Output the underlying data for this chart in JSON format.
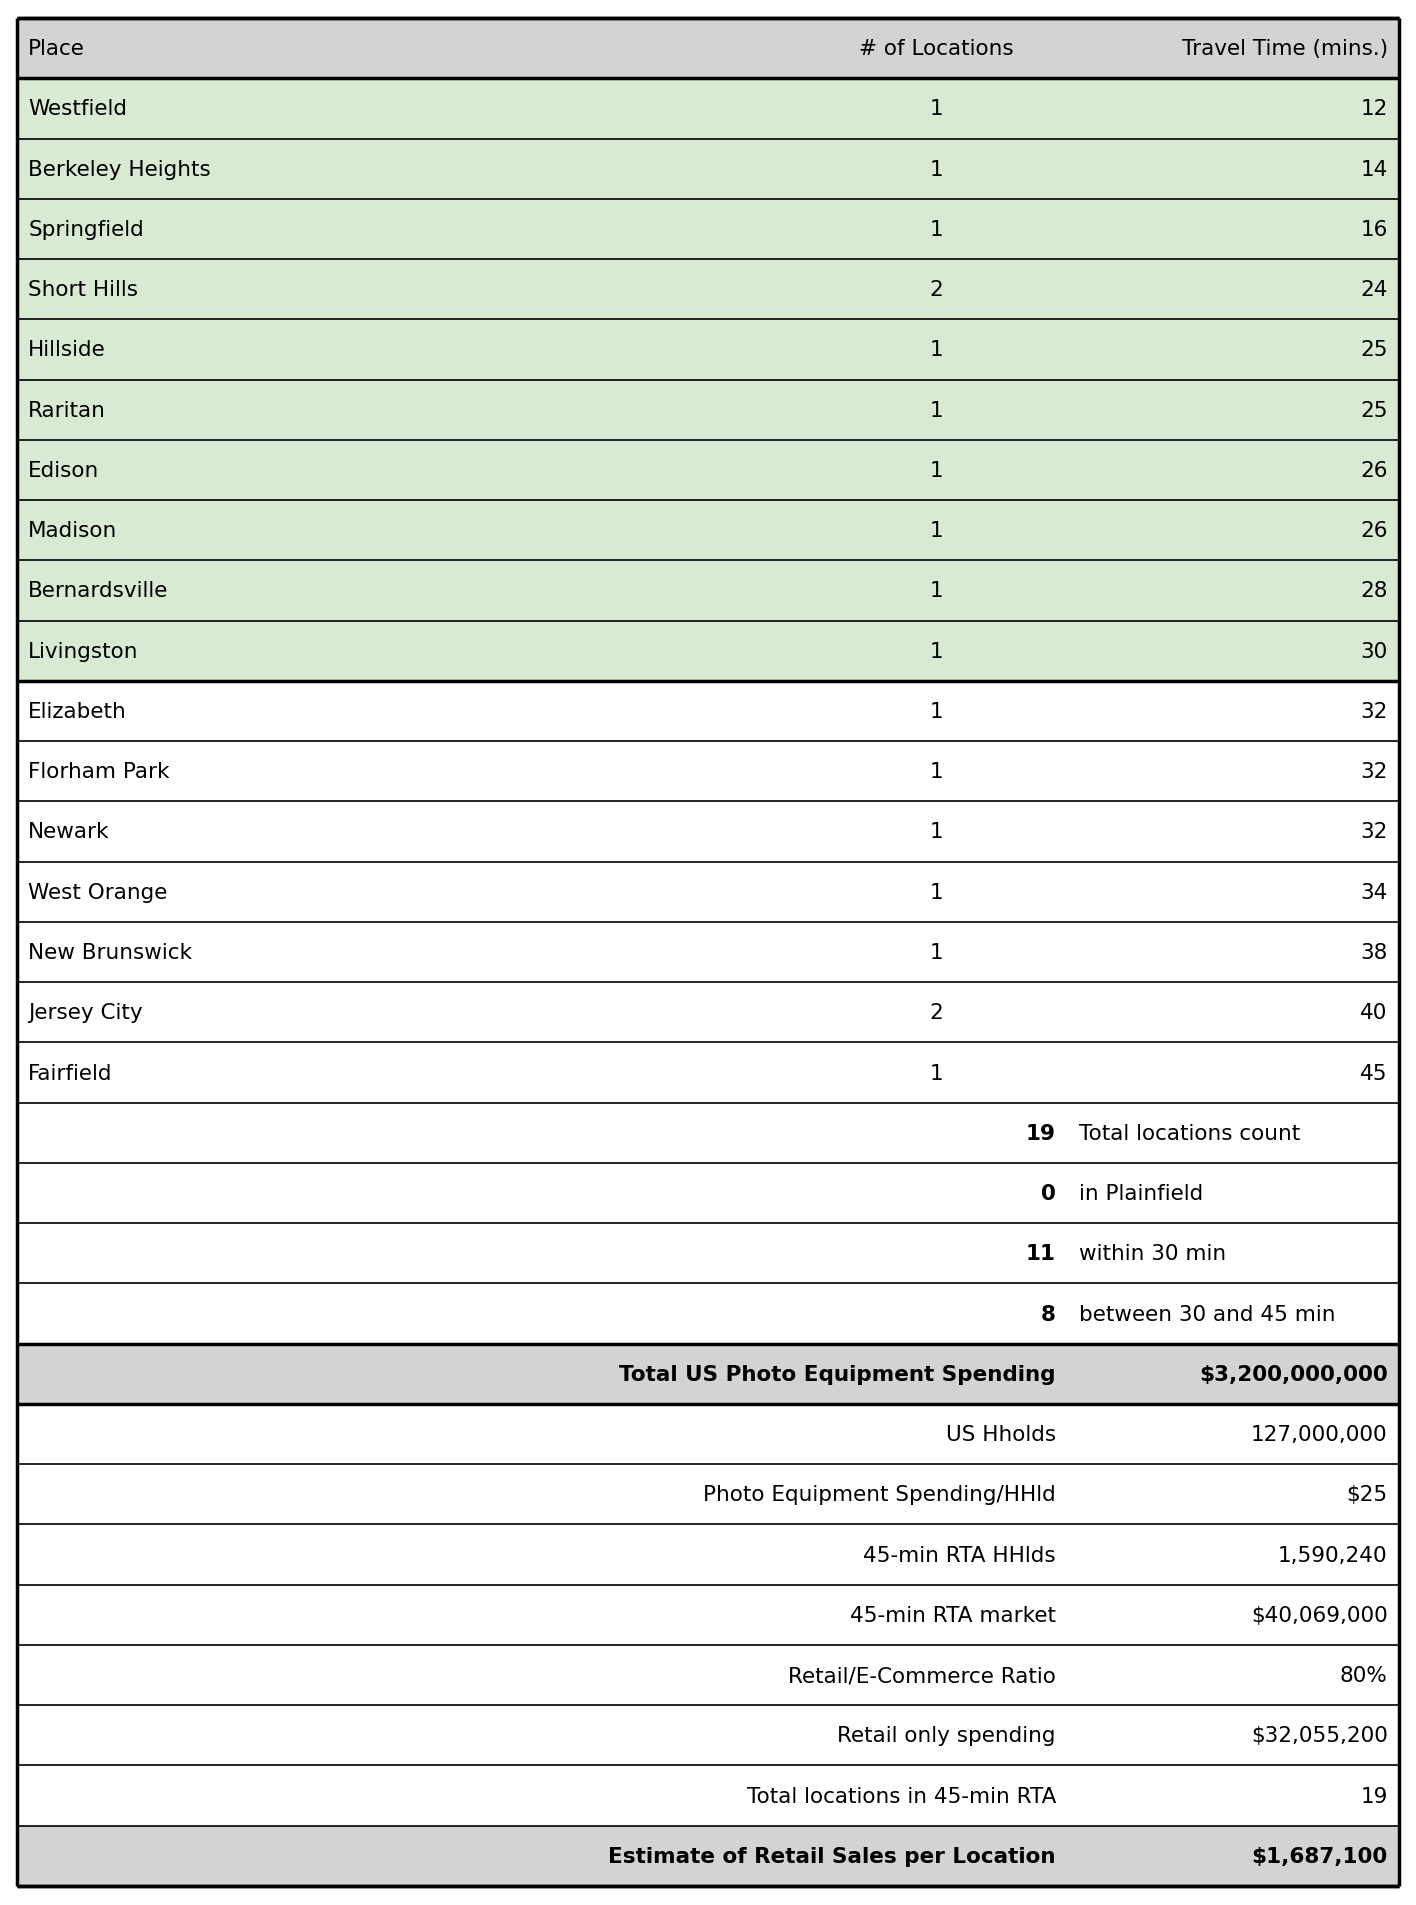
{
  "header": [
    "Place",
    "# of Locations",
    "Travel Time (mins.)"
  ],
  "rows": [
    [
      "Westfield",
      "1",
      "12"
    ],
    [
      "Berkeley Heights",
      "1",
      "14"
    ],
    [
      "Springfield",
      "1",
      "16"
    ],
    [
      "Short Hills",
      "2",
      "24"
    ],
    [
      "Hillside",
      "1",
      "25"
    ],
    [
      "Raritan",
      "1",
      "25"
    ],
    [
      "Edison",
      "1",
      "26"
    ],
    [
      "Madison",
      "1",
      "26"
    ],
    [
      "Bernardsville",
      "1",
      "28"
    ],
    [
      "Livingston",
      "1",
      "30"
    ],
    [
      "Elizabeth",
      "1",
      "32"
    ],
    [
      "Florham Park",
      "1",
      "32"
    ],
    [
      "Newark",
      "1",
      "32"
    ],
    [
      "West Orange",
      "1",
      "34"
    ],
    [
      "New Brunswick",
      "1",
      "38"
    ],
    [
      "Jersey City",
      "2",
      "40"
    ],
    [
      "Fairfield",
      "1",
      "45"
    ]
  ],
  "green_rows": [
    0,
    1,
    2,
    3,
    4,
    5,
    6,
    7,
    8,
    9
  ],
  "summary_rows": [
    {
      "num": "19",
      "text": "Total locations count"
    },
    {
      "num": "0",
      "text": "in Plainfield"
    },
    {
      "num": "11",
      "text": "within 30 min"
    },
    {
      "num": "8",
      "text": "between 30 and 45 min"
    }
  ],
  "calc_rows": [
    {
      "label": "Total US Photo Equipment Spending",
      "value": "$3,200,000,000",
      "bold": true,
      "shaded": true
    },
    {
      "label": "US Hholds",
      "value": "127,000,000",
      "bold": false,
      "shaded": false
    },
    {
      "label": "Photo Equipment Spending/HHld",
      "value": "$25",
      "bold": false,
      "shaded": false
    },
    {
      "label": "45-min RTA HHlds",
      "value": "1,590,240",
      "bold": false,
      "shaded": false
    },
    {
      "label": "45-min RTA market",
      "value": "$40,069,000",
      "bold": false,
      "shaded": false
    },
    {
      "label": "Retail/E-Commerce Ratio",
      "value": "80%",
      "bold": false,
      "shaded": false
    },
    {
      "label": "Retail only spending",
      "value": "$32,055,200",
      "bold": false,
      "shaded": false
    },
    {
      "label": "Total locations in 45-min RTA",
      "value": "19",
      "bold": false,
      "shaded": false
    },
    {
      "label": "Estimate of Retail Sales per Location",
      "value": "$1,687,100",
      "bold": true,
      "shaded": true
    }
  ],
  "header_bg": "#d3d3d3",
  "green_bg": "#d9ead3",
  "white_bg": "#ffffff",
  "shaded_bg": "#d3d3d3",
  "font_size": 15.5,
  "header_font_size": 15.5
}
